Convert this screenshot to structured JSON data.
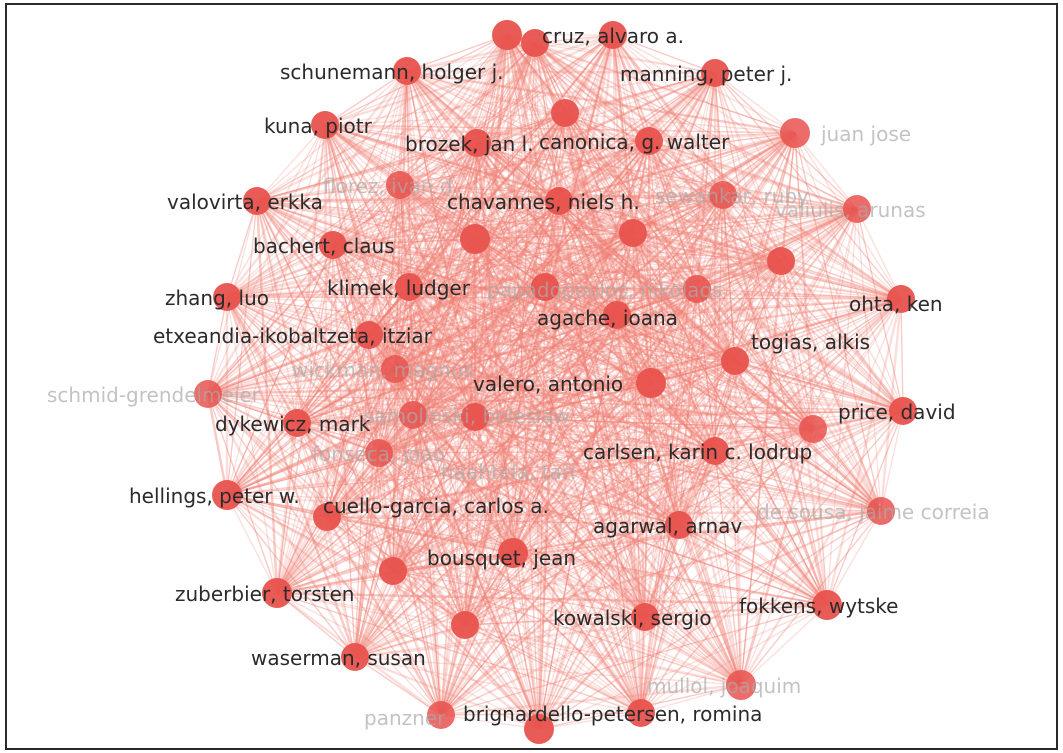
{
  "network": {
    "edge_color": "#f07f72",
    "node_color": "#e8524d",
    "label_color": "#2b2b2b",
    "faded_label_color": "#aaaaaa",
    "nodes": [
      {
        "id": "padula"
      },
      {
        "id": "n_top2"
      },
      {
        "id": "cruz",
        "label": "cruz, alvaro a."
      },
      {
        "id": "schunemann",
        "label": "schunemann, holger j."
      },
      {
        "id": "manning",
        "label": "manning, peter j."
      },
      {
        "id": "n_topmid"
      },
      {
        "id": "kuna",
        "label": "kuna, piotr"
      },
      {
        "id": "brozek",
        "label": "brozek, jan l."
      },
      {
        "id": "canonica",
        "label": "canonica, g. walter"
      },
      {
        "id": "n_juan",
        "label": "juan jose",
        "faded": true
      },
      {
        "id": "florez",
        "label": "florez, ivan d.",
        "faded": true
      },
      {
        "id": "valovirta",
        "label": "valovirta, erkka"
      },
      {
        "id": "chavannes",
        "label": "chavannes, niels h."
      },
      {
        "id": "sewankar",
        "label": "sewankar, ruby",
        "faded": true
      },
      {
        "id": "valiulis",
        "label": "valiulis, arunas",
        "faded": true
      },
      {
        "id": "n_a"
      },
      {
        "id": "n_b"
      },
      {
        "id": "bachert",
        "label": "bachert, claus"
      },
      {
        "id": "n_c"
      },
      {
        "id": "zhang",
        "label": "zhang, luo"
      },
      {
        "id": "klimek",
        "label": "klimek, ludger"
      },
      {
        "id": "n_d"
      },
      {
        "id": "papadopoulos",
        "label": "papadopoulos, nikolaos",
        "faded": true
      },
      {
        "id": "ohta",
        "label": "ohta, ken"
      },
      {
        "id": "agache",
        "label": "agache, ioana"
      },
      {
        "id": "etxeandia",
        "label": "etxeandia-ikobaltzeta, itziar"
      },
      {
        "id": "togias",
        "label": "togias, alkis"
      },
      {
        "id": "wickman",
        "label": "wickman, magnus",
        "faded": true
      },
      {
        "id": "valero",
        "label": "valero, antonio"
      },
      {
        "id": "schmid",
        "label": "schmid-grendelmeier",
        "faded": true
      },
      {
        "id": "n_e"
      },
      {
        "id": "price",
        "label": "price, david"
      },
      {
        "id": "dykewicz",
        "label": "dykewicz, mark"
      },
      {
        "id": "samolinski",
        "label": "samolinski, boleslaw",
        "faded": true
      },
      {
        "id": "fonseca",
        "label": "fonseca, joao",
        "faded": true
      },
      {
        "id": "carlsen",
        "label": "carlsen, karin c. lodrup"
      },
      {
        "id": "haahtela",
        "label": "haahtela, tari",
        "faded": true
      },
      {
        "id": "hellings",
        "label": "hellings, peter w."
      },
      {
        "id": "cuello",
        "label": "cuello-garcia, carlos a."
      },
      {
        "id": "desousa",
        "label": "de sousa, jaime correia",
        "faded": true
      },
      {
        "id": "agarwal",
        "label": "agarwal, arnav"
      },
      {
        "id": "bousquet",
        "label": "bousquet, jean"
      },
      {
        "id": "n_f"
      },
      {
        "id": "zuberbier",
        "label": "zuberbier, torsten"
      },
      {
        "id": "fokkens",
        "label": "fokkens, wytske"
      },
      {
        "id": "kowalski",
        "label": "kowalski, sergio"
      },
      {
        "id": "n_g"
      },
      {
        "id": "waserman",
        "label": "waserman, susan"
      },
      {
        "id": "mullol",
        "label": "mullol, joaquim",
        "faded": true
      },
      {
        "id": "panzner",
        "label": "panzner",
        "faded": true
      },
      {
        "id": "brignardello",
        "label": "brignardello-petersen, romina"
      },
      {
        "id": "n_h"
      }
    ]
  }
}
